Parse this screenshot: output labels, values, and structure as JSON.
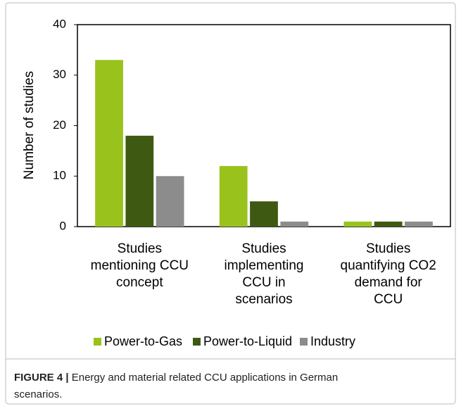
{
  "chart_data": {
    "type": "bar",
    "y_label": "Number of studies",
    "categories": [
      "Studies\nmentioning CCU\nconcept",
      "Studies\nimplementing\nCCU in\nscenarios",
      "Studies\nquantifying CO2\ndemand for\nCCU"
    ],
    "series": [
      {
        "name": "Power-to-Gas",
        "color": "#99c31c",
        "values": [
          33,
          12,
          1
        ]
      },
      {
        "name": "Power-to-Liquid",
        "color": "#3e5a12",
        "values": [
          18,
          5,
          1
        ]
      },
      {
        "name": "Industry",
        "color": "#8c8c8c",
        "values": [
          10,
          1,
          1
        ]
      }
    ],
    "ylim": [
      0,
      40
    ],
    "yticks": [
      0,
      10,
      20,
      30,
      40
    ],
    "grid": false,
    "legend": "bottom"
  },
  "caption": {
    "label": "FIGURE 4 |",
    "text": "Energy and material related CCU applications in German",
    "text2": "scenarios."
  }
}
